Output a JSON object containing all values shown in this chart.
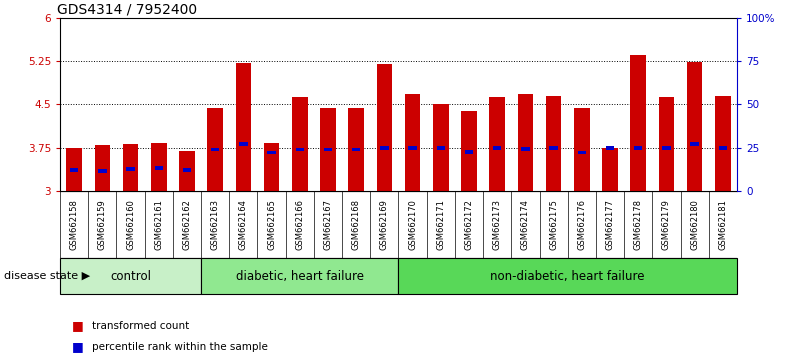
{
  "title": "GDS4314 / 7952400",
  "samples": [
    "GSM662158",
    "GSM662159",
    "GSM662160",
    "GSM662161",
    "GSM662162",
    "GSM662163",
    "GSM662164",
    "GSM662165",
    "GSM662166",
    "GSM662167",
    "GSM662168",
    "GSM662169",
    "GSM662170",
    "GSM662171",
    "GSM662172",
    "GSM662173",
    "GSM662174",
    "GSM662175",
    "GSM662176",
    "GSM662177",
    "GSM662178",
    "GSM662179",
    "GSM662180",
    "GSM662181"
  ],
  "bar_values": [
    3.75,
    3.79,
    3.81,
    3.83,
    3.7,
    4.44,
    5.22,
    3.84,
    4.63,
    4.44,
    4.44,
    5.2,
    4.68,
    4.5,
    4.38,
    4.63,
    4.68,
    4.65,
    4.44,
    3.75,
    5.35,
    4.63,
    5.24,
    4.65
  ],
  "percentile_values": [
    3.37,
    3.35,
    3.38,
    3.4,
    3.36,
    3.72,
    3.82,
    3.67,
    3.72,
    3.72,
    3.72,
    3.75,
    3.75,
    3.75,
    3.68,
    3.75,
    3.73,
    3.75,
    3.67,
    3.75,
    3.75,
    3.75,
    3.82,
    3.75
  ],
  "groups": [
    {
      "label": "control",
      "start": 0,
      "end": 5,
      "color": "#c8f0c8"
    },
    {
      "label": "diabetic, heart failure",
      "start": 5,
      "end": 12,
      "color": "#90e890"
    },
    {
      "label": "non-diabetic, heart failure",
      "start": 12,
      "end": 24,
      "color": "#58d858"
    }
  ],
  "bar_color": "#cc0000",
  "percentile_color": "#0000cc",
  "ymin": 3.0,
  "ymax": 6.0,
  "yticks": [
    3.0,
    3.75,
    4.5,
    5.25,
    6.0
  ],
  "yticklabels": [
    "3",
    "3.75",
    "4.5",
    "5.25",
    "6"
  ],
  "right_yticks": [
    0,
    25,
    50,
    75,
    100
  ],
  "right_yticklabels": [
    "0",
    "25",
    "50",
    "75",
    "100%"
  ],
  "ylabel_color": "#cc0000",
  "right_ylabel_color": "#0000cc",
  "title_fontsize": 10,
  "tick_fontsize": 7.5,
  "xtick_fontsize": 6,
  "bar_width": 0.55,
  "group_label_fontsize": 8.5,
  "disease_state_fontsize": 8
}
